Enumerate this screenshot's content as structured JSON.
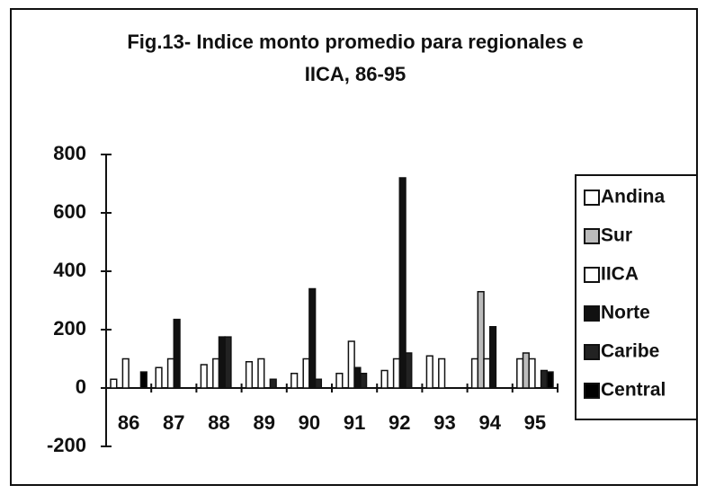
{
  "chart_data": {
    "type": "bar",
    "title": [
      "Fig.13- Indice monto promedio para regionales e",
      "IICA, 86-95"
    ],
    "categories": [
      "86",
      "87",
      "88",
      "89",
      "90",
      "91",
      "92",
      "93",
      "94",
      "95"
    ],
    "series": [
      {
        "name": "Andina",
        "color": "#ffffff",
        "values": [
          30,
          70,
          80,
          90,
          50,
          50,
          60,
          110,
          100,
          100
        ]
      },
      {
        "name": "Sur",
        "color": "#bbbbbb",
        "values": [
          0,
          0,
          0,
          0,
          0,
          0,
          0,
          0,
          330,
          120
        ]
      },
      {
        "name": "IICA",
        "color": "#ffffff",
        "values": [
          100,
          100,
          100,
          100,
          100,
          160,
          100,
          100,
          100,
          100
        ]
      },
      {
        "name": "Norte",
        "color": "#111111",
        "values": [
          0,
          235,
          175,
          0,
          340,
          70,
          720,
          0,
          210,
          0
        ]
      },
      {
        "name": "Caribe",
        "color": "#222222",
        "values": [
          0,
          0,
          175,
          30,
          30,
          50,
          120,
          0,
          0,
          60
        ]
      },
      {
        "name": "Central",
        "color": "#000000",
        "values": [
          55,
          0,
          0,
          0,
          0,
          0,
          0,
          0,
          0,
          55
        ]
      }
    ],
    "ylim": [
      -200,
      800
    ],
    "yticks": [
      -200,
      0,
      200,
      400,
      600,
      800
    ],
    "legend": "right"
  }
}
